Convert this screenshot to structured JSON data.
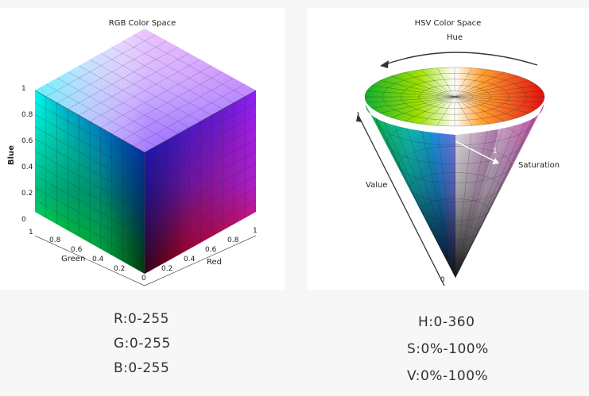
{
  "rgb": {
    "title": "RGB Color Space",
    "blue_axis": {
      "name": "Blue",
      "ticks": [
        "1",
        "0.8",
        "0.6",
        "0.4",
        "0.2",
        "0"
      ]
    },
    "green_axis": {
      "name": "Green",
      "ticks": [
        "1",
        "0.8",
        "0.6",
        "0.4",
        "0.2"
      ]
    },
    "red_axis": {
      "name": "Red",
      "ticks": [
        "0",
        "0.2",
        "0.4",
        "0.6",
        "0.8",
        "1"
      ]
    },
    "captions": [
      "R:0-255",
      "G:0-255",
      "B:0-255"
    ]
  },
  "hsv": {
    "title": "HSV Color Space",
    "hue_label": "Hue",
    "value_label": "Value",
    "saturation_label": "Saturation",
    "value_top": "1",
    "value_bottom": "0",
    "saturation_tick": "1",
    "captions": [
      "H:0-360",
      "S:0%-100%",
      "V:0%-100%"
    ]
  }
}
